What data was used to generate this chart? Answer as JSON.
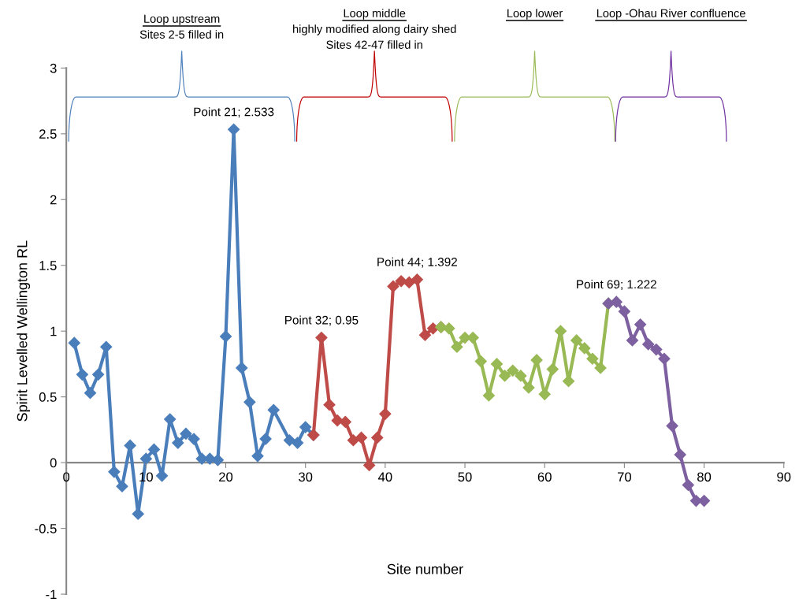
{
  "chart_data": {
    "type": "line",
    "xlabel": "Site number",
    "ylabel": "Spirit Levelled Wellington RL",
    "xlim": [
      0,
      90
    ],
    "xticks": [
      0,
      10,
      20,
      30,
      40,
      50,
      60,
      70,
      80,
      90
    ],
    "ylim": [
      -1,
      3
    ],
    "yticks": [
      -1,
      -0.5,
      0,
      0.5,
      1,
      1.5,
      2,
      2.5,
      3
    ],
    "grid": false,
    "marker": "diamond",
    "line_style": "solid",
    "series": [
      {
        "color": "#4a7ebb",
        "x": [
          1,
          2,
          3,
          4,
          5,
          6,
          7,
          8,
          9,
          10,
          11,
          12,
          13,
          14,
          15,
          16,
          17,
          18,
          19,
          20,
          21,
          22,
          23,
          24,
          25,
          26,
          28,
          29,
          30,
          31
        ],
        "values": [
          0.91,
          0.67,
          0.53,
          0.67,
          0.88,
          -0.07,
          -0.18,
          0.13,
          -0.39,
          0.03,
          0.1,
          -0.1,
          0.33,
          0.15,
          0.22,
          0.18,
          0.03,
          0.03,
          0.02,
          0.96,
          2.533,
          0.72,
          0.46,
          0.05,
          0.18,
          0.4,
          0.17,
          0.15,
          0.27,
          0.21
        ]
      },
      {
        "color": "#be4b48",
        "x": [
          31,
          32,
          33,
          34,
          35,
          36,
          37,
          38,
          39,
          40,
          41,
          42,
          43,
          44,
          45,
          46,
          47
        ],
        "values": [
          0.21,
          0.95,
          0.44,
          0.32,
          0.31,
          0.17,
          0.19,
          -0.02,
          0.19,
          0.37,
          1.34,
          1.38,
          1.37,
          1.392,
          0.97,
          1.02,
          1.03
        ]
      },
      {
        "color": "#98b954",
        "x": [
          47,
          48,
          49,
          50,
          51,
          52,
          53,
          54,
          55,
          56,
          57,
          58,
          59,
          60,
          61,
          62,
          63,
          64,
          65,
          66,
          67,
          68
        ],
        "values": [
          1.03,
          1.02,
          0.88,
          0.95,
          0.95,
          0.77,
          0.51,
          0.75,
          0.66,
          0.7,
          0.66,
          0.57,
          0.78,
          0.52,
          0.71,
          1.0,
          0.62,
          0.93,
          0.87,
          0.79,
          0.72,
          1.21
        ]
      },
      {
        "color": "#7d60a0",
        "x": [
          68,
          69,
          70,
          71,
          72,
          73,
          74,
          75,
          76,
          77,
          78,
          79,
          80
        ],
        "values": [
          1.21,
          1.222,
          1.15,
          0.93,
          1.05,
          0.9,
          0.86,
          0.79,
          0.28,
          0.06,
          -0.17,
          -0.29,
          -0.29
        ]
      }
    ],
    "annotations": [
      {
        "text": "Point 21; 2.533",
        "x": 21,
        "y": 2.533
      },
      {
        "text": "Point 32; 0.95",
        "x": 32,
        "y": 0.95
      },
      {
        "text": "Point 44; 1.392",
        "x": 44,
        "y": 1.392
      },
      {
        "text": "Point 69; 1.222",
        "x": 69,
        "y": 1.222
      },
      "Loop upstream\nSites 2-5 filled in",
      "Loop middle\nhighly modified along dairy shed\nSites 42-47 filled in",
      "Loop lower",
      "Loop -Ohau River confluence"
    ]
  }
}
